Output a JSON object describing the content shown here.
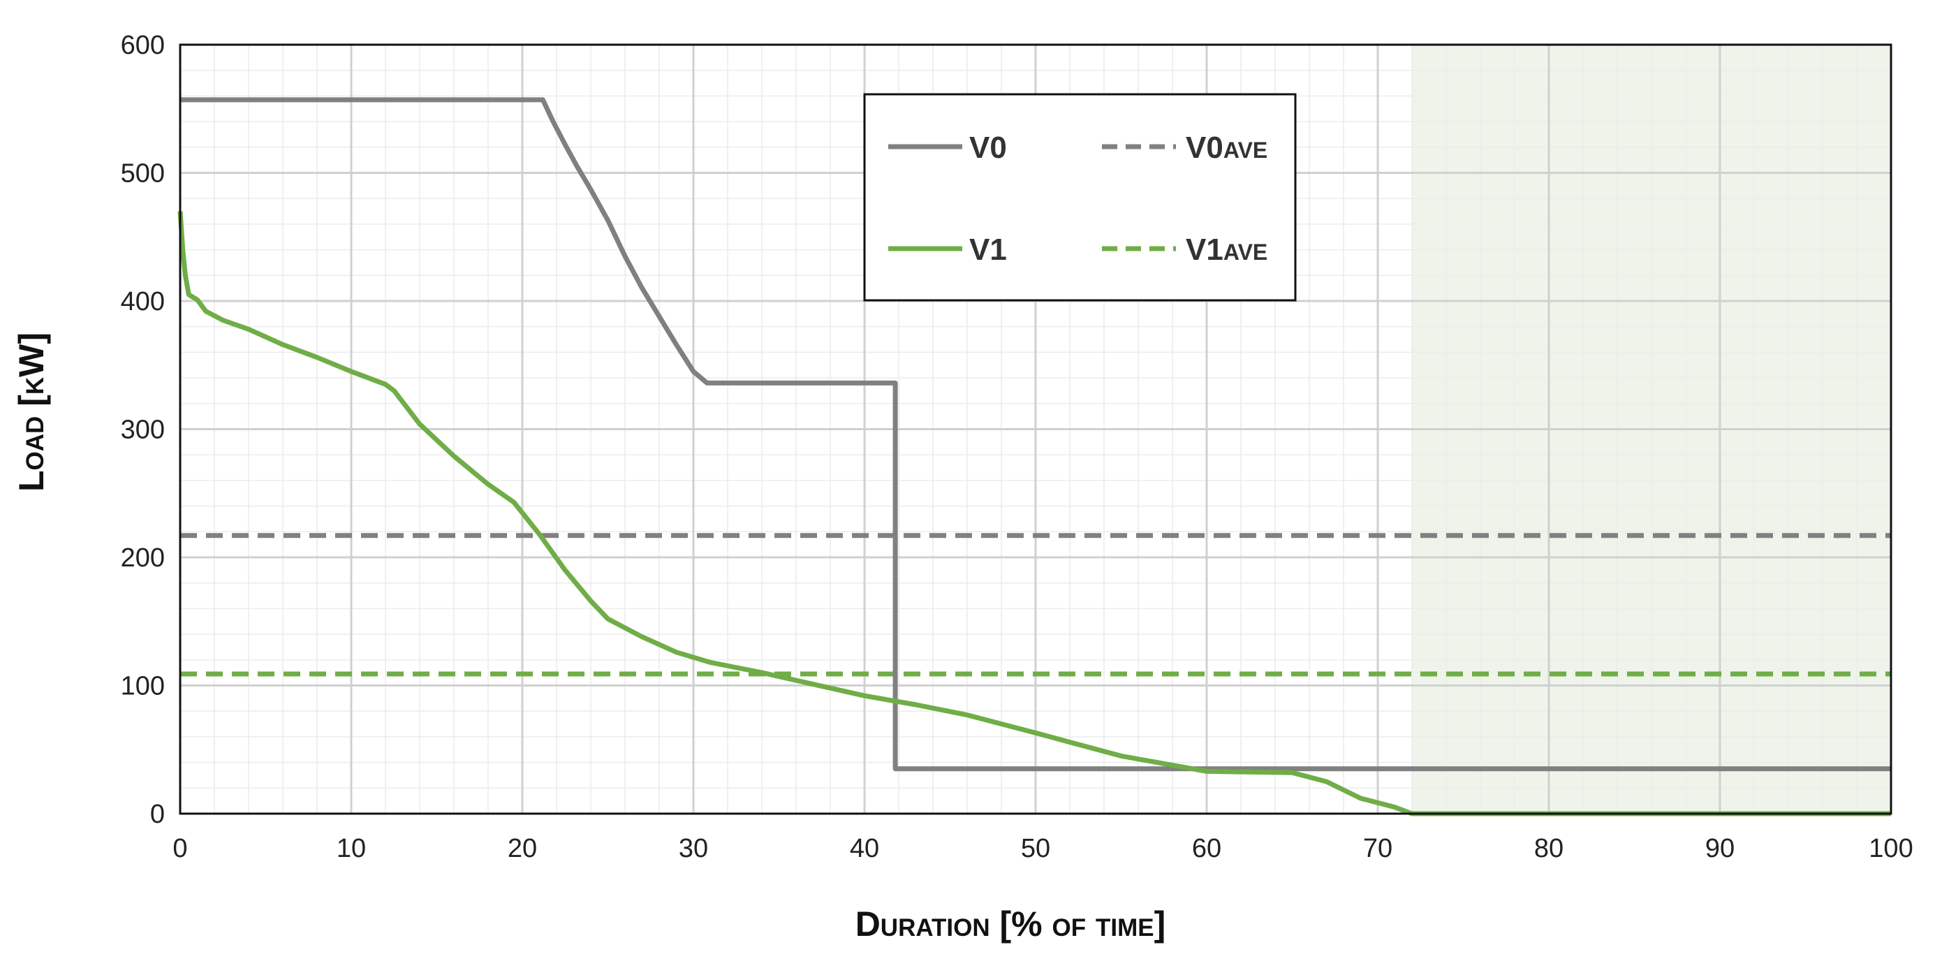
{
  "chart_data": {
    "type": "line",
    "title": "",
    "xlabel": "Duration [% of time]",
    "ylabel": "Load [kW]",
    "xlim": [
      0,
      100
    ],
    "ylim": [
      0,
      600
    ],
    "x_ticks": [
      "0",
      "10",
      "20",
      "30",
      "40",
      "50",
      "60",
      "70",
      "80",
      "90",
      "100"
    ],
    "y_ticks": [
      "0",
      "100",
      "200",
      "300",
      "400",
      "500",
      "600"
    ],
    "grid": true,
    "legend_position": "top-center",
    "shaded_region": {
      "x_from": 72,
      "x_to": 100,
      "color": "#eef4ea"
    },
    "colors": {
      "v0": "#808080",
      "v1": "#70ad47"
    },
    "series": [
      {
        "name": "V0",
        "style": "solid",
        "color": "#808080",
        "x": [
          0,
          21.2,
          21.8,
          22.5,
          23.2,
          24.0,
          25.0,
          26.0,
          27.0,
          28.0,
          29.0,
          30.0,
          30.8,
          41.8,
          41.8,
          100
        ],
        "y": [
          557,
          557,
          540,
          522,
          505,
          487,
          463,
          435,
          410,
          388,
          366,
          345,
          336,
          336,
          35,
          35
        ]
      },
      {
        "name": "V0",
        "sub": "AVE",
        "style": "dashed",
        "color": "#808080",
        "x": [
          0,
          100
        ],
        "y": [
          217,
          217
        ]
      },
      {
        "name": "V1",
        "style": "solid",
        "color": "#70ad47",
        "x": [
          0,
          0.15,
          0.3,
          0.5,
          1.0,
          1.5,
          2.5,
          4,
          6,
          8,
          10,
          12,
          12.5,
          14,
          16,
          18,
          19.5,
          21,
          22.5,
          24,
          25,
          27,
          29,
          31,
          34,
          37,
          40,
          43,
          46,
          50,
          55,
          60,
          65,
          67,
          69,
          71,
          72,
          75,
          100
        ],
        "y": [
          470,
          440,
          420,
          405,
          401,
          392,
          385,
          378,
          366,
          356,
          345,
          335,
          330,
          304,
          279,
          257,
          243,
          218,
          190,
          166,
          152,
          138,
          126,
          118,
          110,
          101,
          92,
          85,
          77,
          63,
          45,
          33,
          32,
          25,
          12,
          5,
          0,
          0,
          0
        ]
      },
      {
        "name": "V1",
        "sub": "AVE",
        "style": "dashed",
        "color": "#70ad47",
        "x": [
          0,
          100
        ],
        "y": [
          109,
          109
        ]
      }
    ]
  }
}
